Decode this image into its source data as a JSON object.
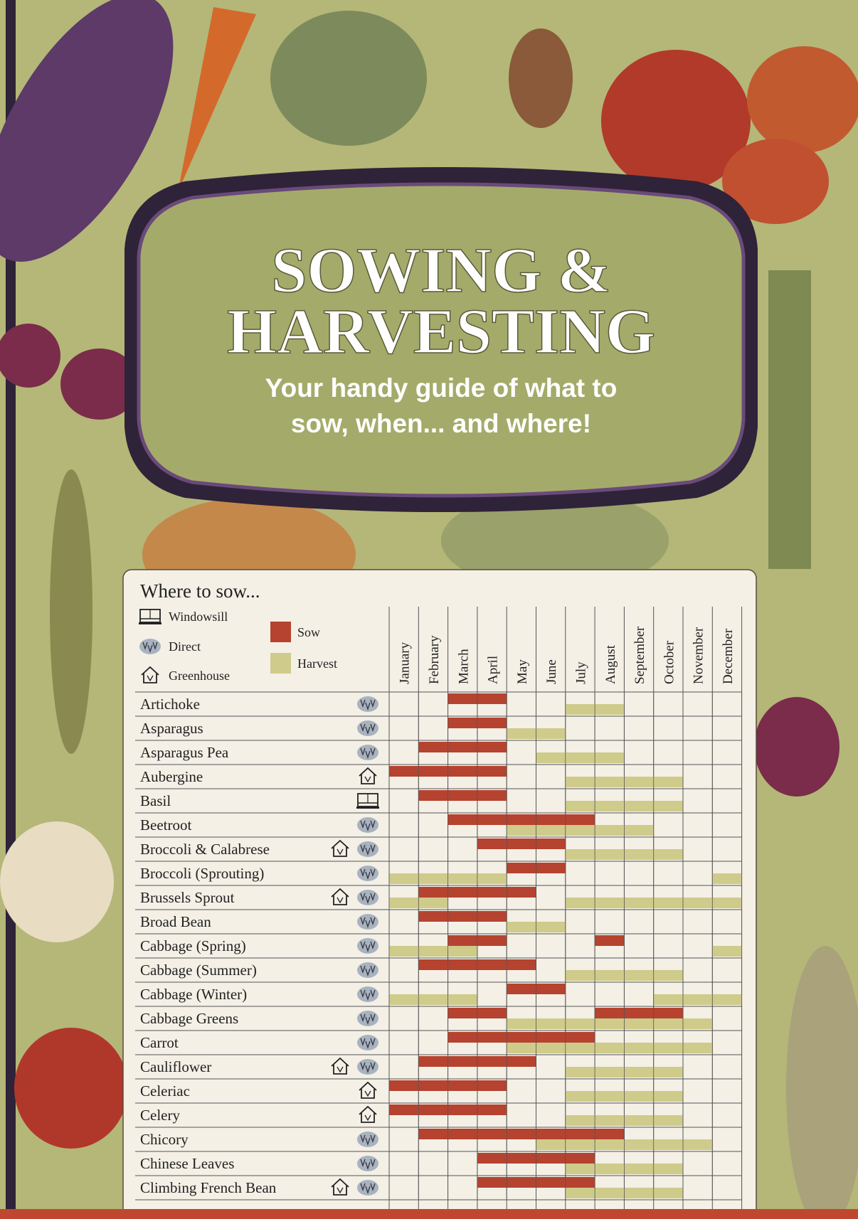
{
  "header": {
    "title_line1": "SOWING &",
    "title_line2": "HARVESTING",
    "subtitle_line1": "Your handy guide of what to",
    "subtitle_line2": "sow, when... and where!"
  },
  "legend": {
    "heading": "Where to sow...",
    "locations": [
      "Windowsill",
      "Direct",
      "Greenhouse"
    ],
    "sow": "Sow",
    "harvest": "Harvest",
    "sow_color": "#b5432f",
    "harvest_color": "#cfcb8a"
  },
  "months": [
    "January",
    "February",
    "March",
    "April",
    "May",
    "June",
    "July",
    "August",
    "September",
    "October",
    "November",
    "December"
  ],
  "rows": [
    {
      "name": "Artichoke",
      "where": [
        1
      ],
      "sow": [
        3,
        4
      ],
      "harvest": [
        7,
        8
      ]
    },
    {
      "name": "Asparagus",
      "where": [
        1
      ],
      "sow": [
        3,
        4
      ],
      "harvest": [
        5,
        6
      ]
    },
    {
      "name": "Asparagus Pea",
      "where": [
        1
      ],
      "sow": [
        2,
        3,
        4
      ],
      "harvest": [
        6,
        7,
        8
      ]
    },
    {
      "name": "Aubergine",
      "where": [
        2
      ],
      "sow": [
        1,
        2,
        3,
        4
      ],
      "harvest": [
        7,
        8,
        9,
        10
      ]
    },
    {
      "name": "Basil",
      "where": [
        0
      ],
      "sow": [
        2,
        3,
        4
      ],
      "harvest": [
        7,
        8,
        9,
        10
      ]
    },
    {
      "name": "Beetroot",
      "where": [
        1
      ],
      "sow": [
        3,
        4,
        5,
        6,
        7
      ],
      "harvest": [
        5,
        6,
        7,
        8,
        9
      ]
    },
    {
      "name": "Broccoli & Calabrese",
      "where": [
        2,
        1
      ],
      "sow": [
        4,
        5,
        6
      ],
      "harvest": [
        7,
        8,
        9,
        10
      ]
    },
    {
      "name": "Broccoli (Sprouting)",
      "where": [
        1
      ],
      "sow": [
        5,
        6
      ],
      "harvest": [
        1,
        2,
        3,
        4,
        12
      ]
    },
    {
      "name": "Brussels Sprout",
      "where": [
        2,
        1
      ],
      "sow": [
        2,
        3,
        4,
        5
      ],
      "harvest": [
        1,
        2,
        7,
        8,
        9,
        10,
        11,
        12
      ]
    },
    {
      "name": "Broad Bean",
      "where": [
        1
      ],
      "sow": [
        2,
        3,
        4
      ],
      "harvest": [
        5,
        6
      ]
    },
    {
      "name": "Cabbage (Spring)",
      "where": [
        1
      ],
      "sow": [
        3,
        4,
        8
      ],
      "harvest": [
        1,
        2,
        3,
        12
      ]
    },
    {
      "name": "Cabbage (Summer)",
      "where": [
        1
      ],
      "sow": [
        2,
        3,
        4,
        5
      ],
      "harvest": [
        7,
        8,
        9,
        10
      ]
    },
    {
      "name": "Cabbage (Winter)",
      "where": [
        1
      ],
      "sow": [
        5,
        6
      ],
      "harvest": [
        1,
        2,
        3,
        10,
        11,
        12
      ]
    },
    {
      "name": "Cabbage Greens",
      "where": [
        1
      ],
      "sow": [
        3,
        4,
        8,
        9,
        10
      ],
      "harvest": [
        5,
        6,
        7,
        8,
        9,
        10,
        11
      ]
    },
    {
      "name": "Carrot",
      "where": [
        1
      ],
      "sow": [
        3,
        4,
        5,
        6,
        7
      ],
      "harvest": [
        5,
        6,
        7,
        8,
        9,
        10,
        11
      ]
    },
    {
      "name": "Cauliflower",
      "where": [
        2,
        1
      ],
      "sow": [
        2,
        3,
        4,
        5
      ],
      "harvest": [
        7,
        8,
        9,
        10
      ]
    },
    {
      "name": "Celeriac",
      "where": [
        2
      ],
      "sow": [
        1,
        2,
        3,
        4
      ],
      "harvest": [
        7,
        8,
        9,
        10
      ]
    },
    {
      "name": "Celery",
      "where": [
        2
      ],
      "sow": [
        1,
        2,
        3,
        4
      ],
      "harvest": [
        7,
        8,
        9,
        10
      ]
    },
    {
      "name": "Chicory",
      "where": [
        1
      ],
      "sow": [
        2,
        3,
        4,
        5,
        6,
        7,
        8
      ],
      "harvest": [
        6,
        7,
        8,
        9,
        10,
        11
      ]
    },
    {
      "name": "Chinese Leaves",
      "where": [
        1
      ],
      "sow": [
        4,
        5,
        6,
        7
      ],
      "harvest": [
        7,
        8,
        9,
        10
      ]
    },
    {
      "name": "Climbing French Bean",
      "where": [
        2,
        1
      ],
      "sow": [
        4,
        5,
        6,
        7
      ],
      "harvest": [
        7,
        8,
        9,
        10
      ]
    }
  ]
}
